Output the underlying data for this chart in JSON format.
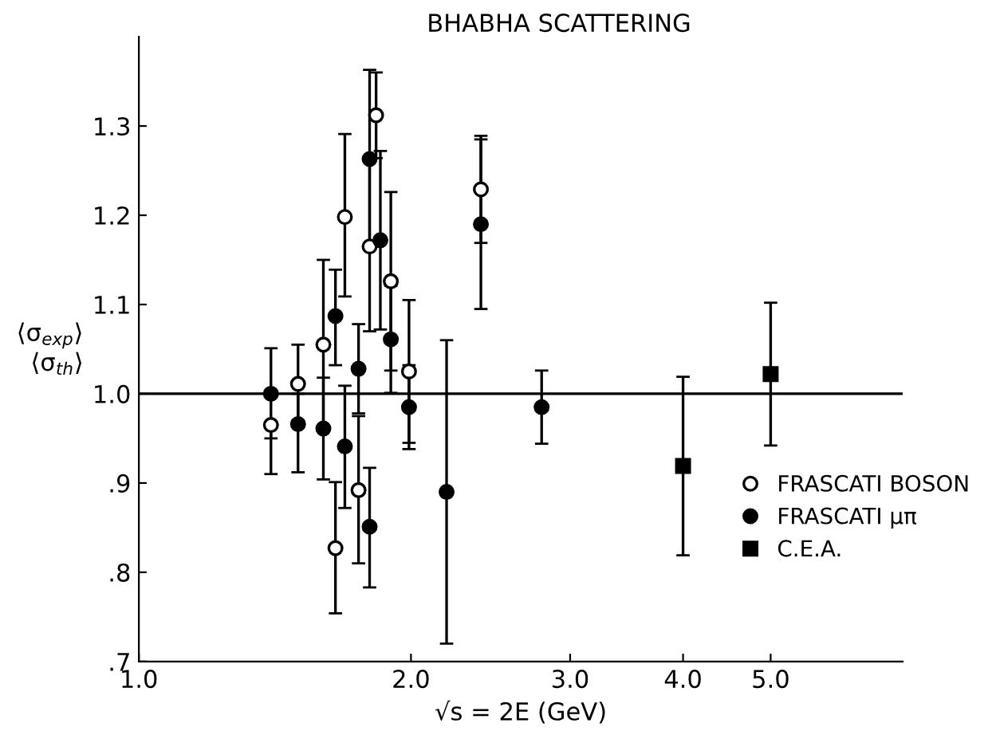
{
  "chart_data": {
    "type": "scatter",
    "title": "BHABHA SCATTERING",
    "xlabel": "√s = 2E (GeV)",
    "ylabel": "⟨σ$_{exp}$⟩\n⟨σ$_{th}$⟩",
    "log": "x",
    "xlim": [
      1,
      7
    ],
    "ylim": [
      0.7,
      1.4
    ],
    "xticks": [
      {
        "value": 1,
        "label": "1.0"
      },
      {
        "value": 2,
        "label": "2.0"
      },
      {
        "value": 3,
        "label": "3.0"
      },
      {
        "value": 4,
        "label": "4.0"
      },
      {
        "value": 5,
        "label": "5.0"
      }
    ],
    "yticks": [
      {
        "value": 0.7,
        "label": ".7"
      },
      {
        "value": 0.8,
        "label": ".8"
      },
      {
        "value": 0.9,
        "label": ".9"
      },
      {
        "value": 1.0,
        "label": "1.0"
      },
      {
        "value": 1.1,
        "label": "1.1"
      },
      {
        "value": 1.2,
        "label": "1.2"
      },
      {
        "value": 1.3,
        "label": "1.3"
      }
    ],
    "grid": false,
    "legend": "right",
    "ref_lines": [
      {
        "axis": "y",
        "value": 1.0,
        "color": "#000000"
      }
    ],
    "series": [
      {
        "name": "FRASCATI BOSON",
        "color": "#ffffff",
        "marker": "circle",
        "x": [
          1.4,
          1.5,
          1.6,
          1.65,
          1.69,
          1.75,
          1.8,
          1.83,
          1.9,
          1.99,
          2.39
        ],
        "values": [
          0.965,
          1.011,
          1.055,
          0.827,
          1.198,
          0.892,
          1.165,
          1.312,
          1.126,
          1.025,
          1.229
        ],
        "errors": [
          [
            0.91,
            0.965
          ],
          [
            0.97,
            1.055
          ],
          0.095,
          [
            0.754,
            0.901
          ],
          [
            1.109,
            1.291
          ],
          [
            0.81,
            0.975
          ],
          0.095,
          0.048,
          0.1,
          0.08,
          0.06
        ]
      },
      {
        "name": "FRASCATI μπ",
        "color": "#000000",
        "marker": "circle",
        "x": [
          1.4,
          1.5,
          1.6,
          1.65,
          1.69,
          1.75,
          1.8,
          1.8,
          1.85,
          1.9,
          1.99,
          2.19,
          2.39,
          2.79
        ],
        "values": [
          1.0,
          0.966,
          0.961,
          1.087,
          0.941,
          1.028,
          0.851,
          1.263,
          1.172,
          1.061,
          0.985,
          0.89,
          1.19,
          0.985
        ],
        "errors": [
          [
            0.95,
            1.051
          ],
          [
            0.912,
            1.0
          ],
          [
            0.904,
            1.018
          ],
          [
            1.032,
            1.139
          ],
          [
            0.872,
            1.009
          ],
          0.05,
          [
            0.783,
            0.917
          ],
          0.1,
          0.1,
          0.06,
          0.047,
          0.17,
          0.095,
          0.041
        ]
      },
      {
        "name": "C.E.A.",
        "color": "#000000",
        "marker": "square",
        "x": [
          4.0,
          5.0
        ],
        "values": [
          0.919,
          1.022
        ],
        "errors": [
          0.1,
          0.08
        ]
      }
    ]
  }
}
